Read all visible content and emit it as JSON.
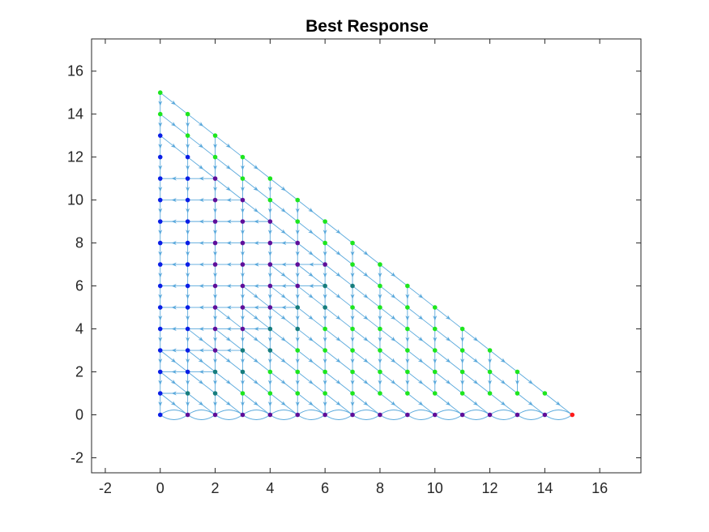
{
  "chart_data": {
    "type": "scatter",
    "title": "Best Response",
    "xlabel": "",
    "ylabel": "",
    "xlim": [
      -2.5,
      17.5
    ],
    "ylim": [
      -2.7,
      17.5
    ],
    "xticks": [
      -2,
      0,
      2,
      4,
      6,
      8,
      10,
      12,
      14,
      16
    ],
    "yticks": [
      -2,
      0,
      2,
      4,
      6,
      8,
      10,
      12,
      14,
      16
    ],
    "xtick_labels": [
      "-2",
      "0",
      "2",
      "4",
      "6",
      "8",
      "10",
      "12",
      "14",
      "16"
    ],
    "ytick_labels": [
      "-2",
      "0",
      "2",
      "4",
      "6",
      "8",
      "10",
      "12",
      "14",
      "16"
    ],
    "grid": false,
    "legend": "none",
    "total": 15,
    "colors": {
      "blue": "#0a1ee6",
      "purple": "#5f0f9a",
      "green": "#1ee61e",
      "teal": "#167d7d",
      "red": "#ff1a1a",
      "edge": "#5aa9dc"
    },
    "points_description": "Lattice points (x,y) with x,y >= 0 integers and x+y <= 15; connected by best-response arrows"
  }
}
